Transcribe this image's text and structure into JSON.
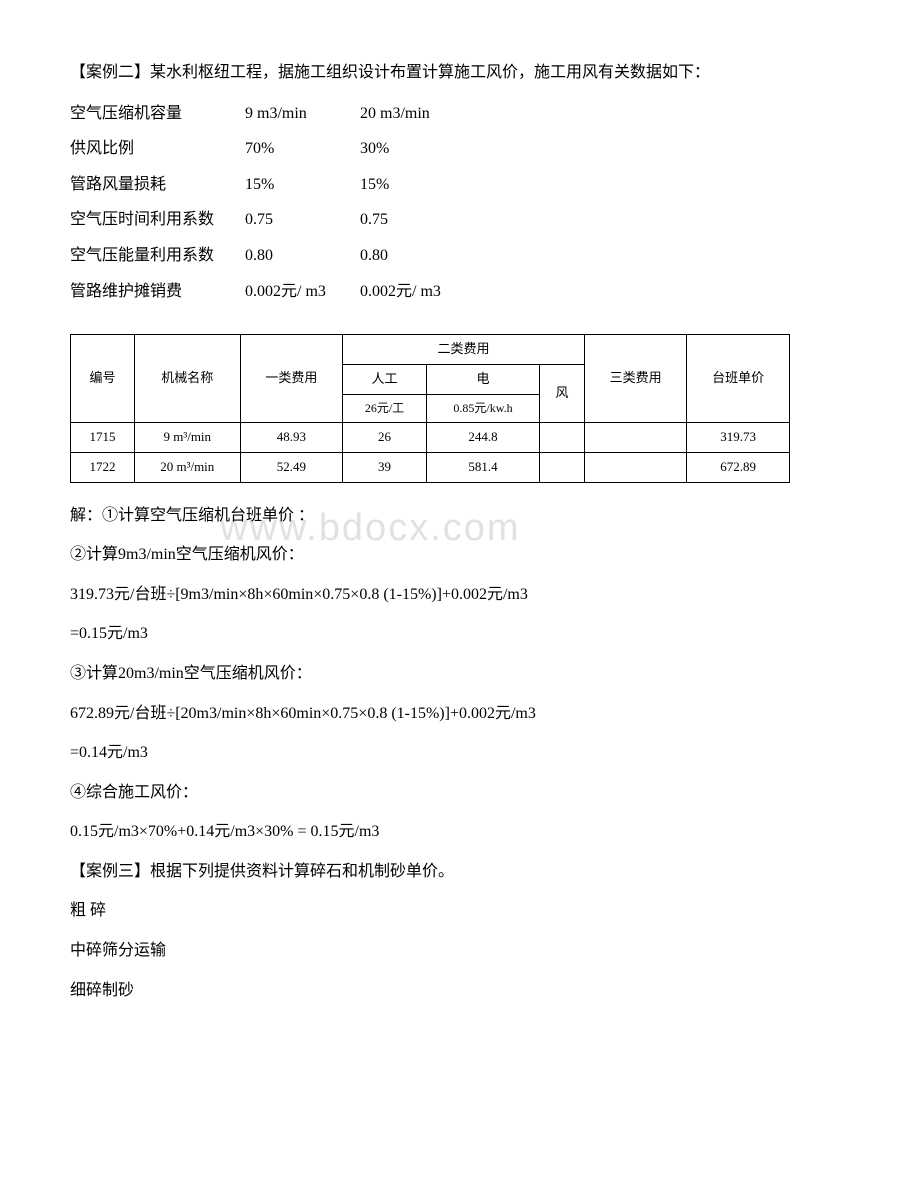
{
  "intro": "【案例二】某水利枢纽工程，据施工组织设计布置计算施工风价，施工用风有关数据如下：",
  "params": [
    {
      "label": "空气压缩机容量",
      "v1": "9 m3/min",
      "v2": "20 m3/min"
    },
    {
      "label": "供风比例",
      "v1": "70%",
      "v2": "30%"
    },
    {
      "label": "管路风量损耗",
      "v1": "15%",
      "v2": "15%"
    },
    {
      "label": "空气压时间利用系数",
      "v1": "0.75",
      "v2": "0.75"
    },
    {
      "label": "空气压能量利用系数",
      "v1": "0.80",
      "v2": "0.80"
    },
    {
      "label": "管路维护摊销费",
      "v1": "0.002元/ m3",
      "v2": "0.002元/ m3"
    }
  ],
  "costTable": {
    "headers": {
      "col1": "编号",
      "col2": "机械名称",
      "col3": "一类费用",
      "cat2": "二类费用",
      "sub_labor": "人工",
      "sub_elec": "电",
      "sub_wind": "风",
      "col7": "三类费用",
      "col8": "台班单价",
      "labor_rate": "26元/工",
      "elec_rate": "0.85元/kw.h"
    },
    "rows": [
      {
        "id": "1715",
        "name": "9 m³/min",
        "c1": "48.93",
        "labor": "26",
        "elec": "244.8",
        "wind": "",
        "c3": "",
        "price": "319.73"
      },
      {
        "id": "1722",
        "name": "20 m³/min",
        "c1": "52.49",
        "labor": "39",
        "elec": "581.4",
        "wind": "",
        "c3": "",
        "price": "672.89"
      }
    ]
  },
  "solution": {
    "s1": "解：①计算空气压缩机台班单价 ：",
    "s2": "②计算9m3/min空气压缩机风价：",
    "s3": "319.73元/台班÷[9m3/min×8h×60min×0.75×0.8 (1-15%)]+0.002元/m3",
    "s4": "=0.15元/m3",
    "s5": "③计算20m3/min空气压缩机风价：",
    "s6": "672.89元/台班÷[20m3/min×8h×60min×0.75×0.8 (1-15%)]+0.002元/m3",
    "s7": "=0.14元/m3",
    "s8": "④综合施工风价：",
    "s9": "0.15元/m3×70%+0.14元/m3×30% = 0.15元/m3",
    "s10": "【案例三】根据下列提供资料计算碎石和机制砂单价。",
    "s11": "粗 碎",
    "s12": "中碎筛分运输",
    "s13": "细碎制砂"
  },
  "watermark": "www.bdocx.com"
}
